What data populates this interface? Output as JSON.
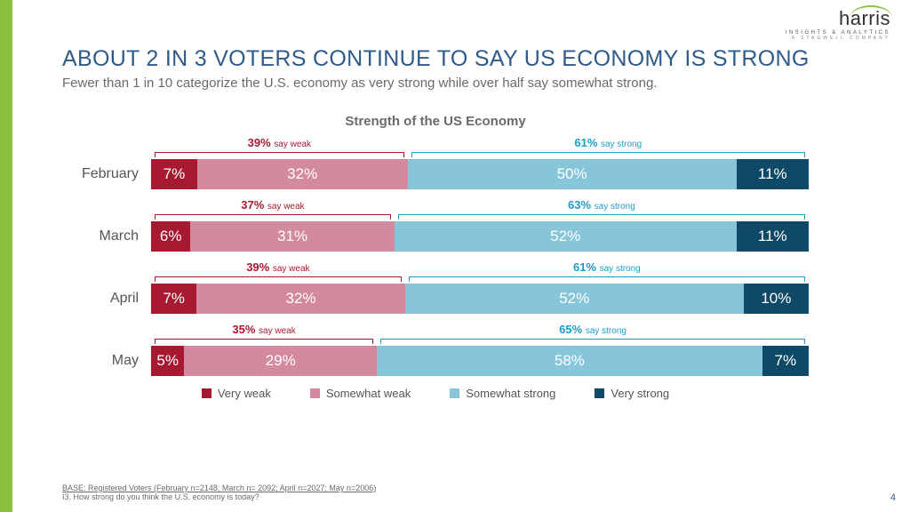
{
  "logo": {
    "brand": "harris",
    "line1": "INSIGHTS & ANALYTICS",
    "line2": "A STAGWELL COMPANY"
  },
  "title": "ABOUT 2 IN 3 VOTERS CONTINUE TO SAY US ECONOMY IS STRONG",
  "subtitle": "Fewer than 1 in 10 categorize the U.S. economy as very strong while over half say somewhat strong.",
  "chart": {
    "title": "Strength of the US Economy",
    "type": "stacked-bar-horizontal",
    "colors": {
      "very_weak": "#a71930",
      "somewhat_weak": "#d38a9f",
      "somewhat_strong": "#86c5da",
      "very_strong": "#0e4a68",
      "weak_bracket": "#a71930",
      "strong_bracket": "#1e9dc9",
      "text": "#ffffff"
    },
    "legend": [
      {
        "label": "Very weak",
        "color": "#a71930"
      },
      {
        "label": "Somewhat weak",
        "color": "#d38a9f"
      },
      {
        "label": "Somewhat strong",
        "color": "#86c5da"
      },
      {
        "label": "Very strong",
        "color": "#0e4a68"
      }
    ],
    "rows": [
      {
        "label": "February",
        "very_weak": 7,
        "somewhat_weak": 32,
        "somewhat_strong": 50,
        "very_strong": 11,
        "weak_total": 39,
        "strong_total": 61
      },
      {
        "label": "March",
        "very_weak": 6,
        "somewhat_weak": 31,
        "somewhat_strong": 52,
        "very_strong": 11,
        "weak_total": 37,
        "strong_total": 63
      },
      {
        "label": "April",
        "very_weak": 7,
        "somewhat_weak": 32,
        "somewhat_strong": 52,
        "very_strong": 10,
        "weak_total": 39,
        "strong_total": 61
      },
      {
        "label": "May",
        "very_weak": 5,
        "somewhat_weak": 29,
        "somewhat_strong": 58,
        "very_strong": 7,
        "weak_total": 35,
        "strong_total": 65
      }
    ],
    "bracket_suffix_weak": "say weak",
    "bracket_suffix_strong": "say strong"
  },
  "footer": {
    "base": "BASE: Registered Voters (February n=2148; March n= 2092; April n=2027; May n=2006)",
    "question": "I3. How strong do you think the U.S. economy is today?"
  },
  "page_number": "4"
}
